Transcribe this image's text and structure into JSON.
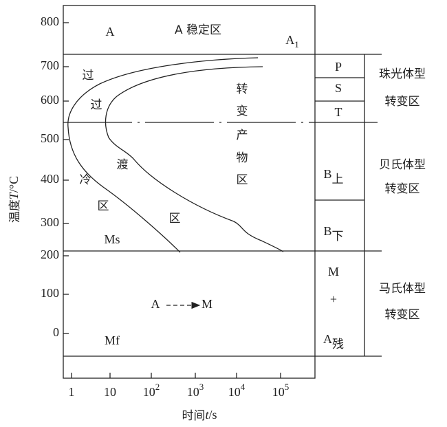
{
  "axes": {
    "y_label": {
      "main": "温度",
      "var": "T",
      "unit": "/°C"
    },
    "x_label": {
      "main": "时间",
      "var": "t",
      "unit": "/s"
    },
    "y_ticks": [
      "800",
      "700",
      "600",
      "500",
      "400",
      "300",
      "200",
      "100",
      "0"
    ],
    "x_ticks": [
      {
        "base": "1"
      },
      {
        "base": "10"
      },
      {
        "base": "10",
        "exp": "2"
      },
      {
        "base": "10",
        "exp": "3"
      },
      {
        "base": "10",
        "exp": "4"
      },
      {
        "base": "10",
        "exp": "5"
      }
    ]
  },
  "regions": {
    "a": "A",
    "a_stable": "A 稳定区",
    "a1": {
      "base": "A",
      "sub": "1"
    },
    "guo1": "过",
    "guo2": "过",
    "leng": "冷",
    "qu1": "区",
    "du": "渡",
    "qu2": "区",
    "product": [
      "转",
      "变",
      "产",
      "物",
      "区"
    ],
    "ms": "Ms",
    "mf": "Mf",
    "am": {
      "from": "A",
      "to": "M"
    }
  },
  "side": {
    "p": "P",
    "s": "S",
    "t": "T",
    "pearlite": [
      "珠光体型",
      "转变区"
    ],
    "b_upper": {
      "base": "B",
      "sub": "上"
    },
    "b_lower": {
      "base": "B",
      "sub": "下"
    },
    "bainite": [
      "贝氏体型",
      "转变区"
    ],
    "m": "M",
    "plus": "+",
    "a_res": {
      "base": "A",
      "sub": "残"
    },
    "martensite": [
      "马氏体型",
      "转变区"
    ]
  }
}
